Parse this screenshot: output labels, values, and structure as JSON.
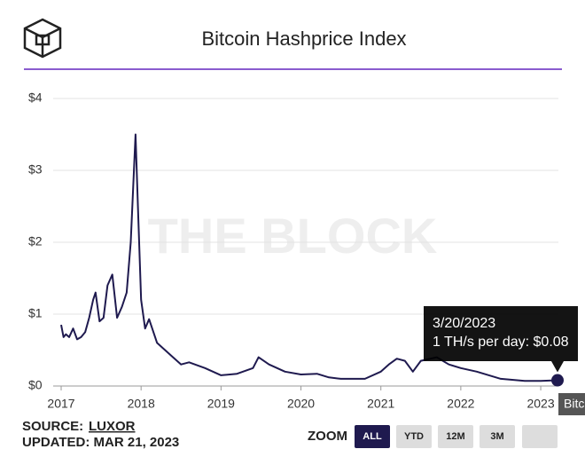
{
  "chart_data": {
    "type": "line",
    "title": "Bitcoin Hashprice Index",
    "watermark": "THE BLOCK",
    "x": [
      2017.0,
      2017.03,
      2017.06,
      2017.1,
      2017.15,
      2017.2,
      2017.25,
      2017.3,
      2017.35,
      2017.4,
      2017.43,
      2017.48,
      2017.53,
      2017.58,
      2017.64,
      2017.7,
      2017.76,
      2017.82,
      2017.87,
      2017.91,
      2017.93,
      2017.96,
      2018.0,
      2018.05,
      2018.1,
      2018.2,
      2018.3,
      2018.4,
      2018.5,
      2018.6,
      2018.8,
      2019.0,
      2019.2,
      2019.4,
      2019.47,
      2019.6,
      2019.8,
      2020.0,
      2020.2,
      2020.35,
      2020.5,
      2020.8,
      2021.0,
      2021.1,
      2021.2,
      2021.3,
      2021.4,
      2021.5,
      2021.7,
      2021.85,
      2022.0,
      2022.2,
      2022.5,
      2022.8,
      2023.0,
      2023.21
    ],
    "series": [
      {
        "name": "Bitcoin Hashprice",
        "color": "#1f1a4f",
        "values": [
          0.85,
          0.68,
          0.72,
          0.68,
          0.8,
          0.65,
          0.68,
          0.75,
          0.95,
          1.2,
          1.3,
          0.9,
          0.95,
          1.4,
          1.55,
          0.95,
          1.1,
          1.3,
          2.0,
          3.0,
          3.5,
          2.5,
          1.2,
          0.8,
          0.93,
          0.6,
          0.5,
          0.4,
          0.3,
          0.33,
          0.25,
          0.15,
          0.17,
          0.25,
          0.4,
          0.3,
          0.2,
          0.16,
          0.17,
          0.12,
          0.1,
          0.1,
          0.2,
          0.3,
          0.38,
          0.35,
          0.2,
          0.35,
          0.4,
          0.3,
          0.25,
          0.2,
          0.1,
          0.07,
          0.07,
          0.08
        ]
      }
    ],
    "xlim": [
      2017,
      2023.21
    ],
    "ylim": [
      0,
      4
    ],
    "xticks": [
      2017,
      2018,
      2019,
      2020,
      2021,
      2022,
      2023
    ],
    "yticks": [
      {
        "value": 0,
        "label": "$0"
      },
      {
        "value": 1,
        "label": "$1"
      },
      {
        "value": 2,
        "label": "$2"
      },
      {
        "value": 3,
        "label": "$3"
      },
      {
        "value": 4,
        "label": "$4"
      }
    ],
    "grid": true,
    "tooltip": {
      "date": "3/20/2023",
      "text": "1 TH/s per day: $0.08"
    },
    "annotations": [
      "Bitc"
    ],
    "source_label": "SOURCE:",
    "source": "LUXOR",
    "updated": "UPDATED: MAR 21, 2023",
    "zoom_label": "ZOOM",
    "zoom_buttons": [
      "ALL",
      "YTD",
      "12M",
      "3M"
    ]
  }
}
